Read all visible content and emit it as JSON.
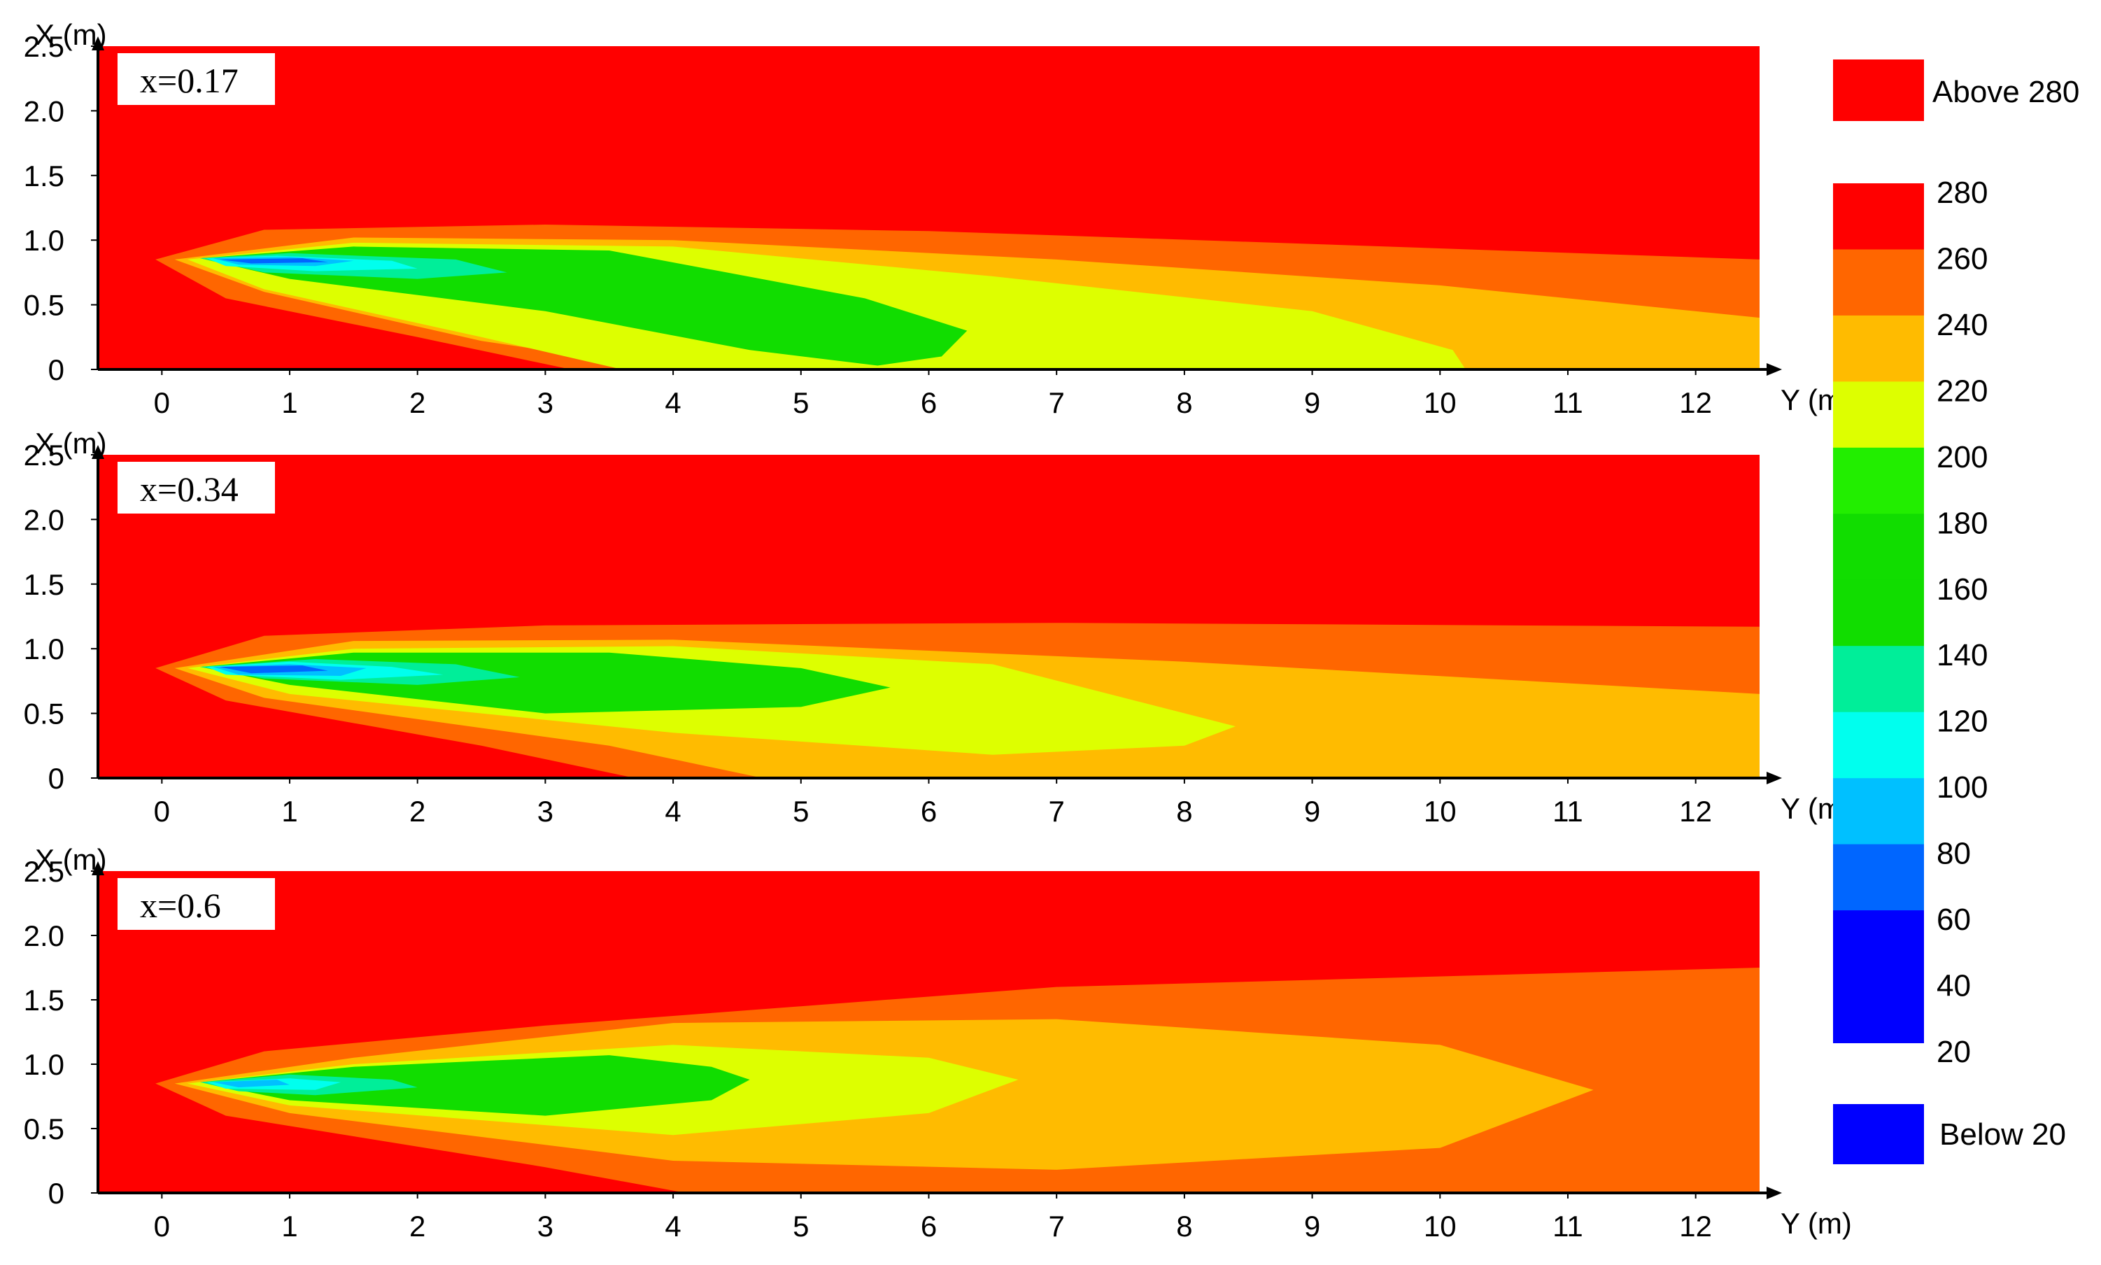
{
  "chart_data": [
    {
      "type": "heatmap",
      "annotation": "x=0.17",
      "xlabel": "Y (m)",
      "ylabel": "X (m)",
      "xlim": [
        -0.5,
        12.5
      ],
      "ylim": [
        0,
        2.5
      ],
      "xticks": [
        "0",
        "1",
        "2",
        "3",
        "4",
        "5",
        "6",
        "7",
        "8",
        "9",
        "10",
        "11",
        "12"
      ],
      "yticks": [
        "0",
        "0.5",
        "1.0",
        "1.5",
        "2.0",
        "2.5"
      ],
      "regions": [
        {
          "level": 280,
          "color": "#ff6600",
          "poly": [
            [
              -0.05,
              0.85
            ],
            [
              0.8,
              1.08
            ],
            [
              3.0,
              1.12
            ],
            [
              6.0,
              1.07
            ],
            [
              9.0,
              0.97
            ],
            [
              12.5,
              0.85
            ],
            [
              12.5,
              0
            ],
            [
              3.2,
              0
            ],
            [
              2.0,
              0.25
            ],
            [
              0.5,
              0.55
            ]
          ]
        },
        {
          "level": 260,
          "color": "#ffbb00",
          "poly": [
            [
              0.1,
              0.85
            ],
            [
              1.5,
              1.02
            ],
            [
              4.0,
              1.0
            ],
            [
              7.0,
              0.85
            ],
            [
              10.0,
              0.65
            ],
            [
              12.5,
              0.4
            ],
            [
              12.5,
              0
            ],
            [
              4.0,
              0
            ],
            [
              2.5,
              0.22
            ],
            [
              0.8,
              0.6
            ]
          ]
        },
        {
          "level": 240,
          "color": "#ddff00",
          "poly": [
            [
              0.2,
              0.85
            ],
            [
              1.5,
              0.98
            ],
            [
              4.0,
              0.95
            ],
            [
              6.5,
              0.72
            ],
            [
              9.0,
              0.45
            ],
            [
              10.1,
              0.15
            ],
            [
              10.2,
              0
            ],
            [
              3.6,
              0
            ],
            [
              2.5,
              0.25
            ],
            [
              0.8,
              0.62
            ]
          ]
        },
        {
          "level": 220,
          "color": "#11dd00",
          "poly": [
            [
              0.3,
              0.86
            ],
            [
              1.5,
              0.95
            ],
            [
              3.5,
              0.92
            ],
            [
              5.5,
              0.55
            ],
            [
              6.3,
              0.3
            ],
            [
              6.1,
              0.1
            ],
            [
              5.6,
              0.03
            ],
            [
              4.6,
              0.15
            ],
            [
              3.0,
              0.45
            ],
            [
              1.0,
              0.7
            ]
          ]
        },
        {
          "level": 140,
          "color": "#00ee99",
          "poly": [
            [
              0.3,
              0.86
            ],
            [
              1.0,
              0.9
            ],
            [
              2.3,
              0.85
            ],
            [
              2.7,
              0.75
            ],
            [
              2.0,
              0.7
            ],
            [
              0.8,
              0.75
            ]
          ]
        },
        {
          "level": 100,
          "color": "#00ffee",
          "poly": [
            [
              0.35,
              0.86
            ],
            [
              0.9,
              0.88
            ],
            [
              1.8,
              0.84
            ],
            [
              2.0,
              0.78
            ],
            [
              1.2,
              0.76
            ],
            [
              0.5,
              0.8
            ]
          ]
        },
        {
          "level": 80,
          "color": "#00c0ff",
          "poly": [
            [
              0.4,
              0.86
            ],
            [
              1.0,
              0.87
            ],
            [
              1.5,
              0.84
            ],
            [
              1.2,
              0.8
            ],
            [
              0.6,
              0.81
            ]
          ]
        },
        {
          "level": 60,
          "color": "#0066ff",
          "poly": [
            [
              0.45,
              0.85
            ],
            [
              1.1,
              0.86
            ],
            [
              1.3,
              0.83
            ],
            [
              0.7,
              0.82
            ]
          ]
        }
      ]
    },
    {
      "type": "heatmap",
      "annotation": "x=0.34",
      "xlabel": "Y (m)",
      "ylabel": "X (m)",
      "xlim": [
        -0.5,
        12.5
      ],
      "ylim": [
        0,
        2.5
      ],
      "xticks": [
        "0",
        "1",
        "2",
        "3",
        "4",
        "5",
        "6",
        "7",
        "8",
        "9",
        "10",
        "11",
        "12"
      ],
      "yticks": [
        "0",
        "0.5",
        "1.0",
        "1.5",
        "2.0",
        "2.5"
      ],
      "regions": [
        {
          "level": 280,
          "color": "#ff6600",
          "poly": [
            [
              -0.05,
              0.85
            ],
            [
              0.8,
              1.1
            ],
            [
              3.0,
              1.18
            ],
            [
              7.0,
              1.2
            ],
            [
              12.5,
              1.17
            ],
            [
              12.5,
              0
            ],
            [
              3.7,
              0
            ],
            [
              2.5,
              0.25
            ],
            [
              0.5,
              0.6
            ]
          ]
        },
        {
          "level": 260,
          "color": "#ffbb00",
          "poly": [
            [
              0.1,
              0.85
            ],
            [
              1.5,
              1.06
            ],
            [
              4.0,
              1.07
            ],
            [
              8.0,
              0.9
            ],
            [
              12.5,
              0.65
            ],
            [
              12.5,
              0
            ],
            [
              4.7,
              0
            ],
            [
              3.5,
              0.25
            ],
            [
              0.8,
              0.62
            ]
          ]
        },
        {
          "level": 240,
          "color": "#ddff00",
          "poly": [
            [
              0.2,
              0.85
            ],
            [
              1.5,
              1.0
            ],
            [
              4.0,
              1.02
            ],
            [
              6.5,
              0.88
            ],
            [
              8.4,
              0.4
            ],
            [
              8.0,
              0.25
            ],
            [
              6.5,
              0.18
            ],
            [
              4.0,
              0.35
            ],
            [
              1.0,
              0.65
            ]
          ]
        },
        {
          "level": 220,
          "color": "#11dd00",
          "poly": [
            [
              0.3,
              0.86
            ],
            [
              1.5,
              0.97
            ],
            [
              3.5,
              0.97
            ],
            [
              5.0,
              0.85
            ],
            [
              5.7,
              0.7
            ],
            [
              5.0,
              0.55
            ],
            [
              3.0,
              0.5
            ],
            [
              1.0,
              0.72
            ]
          ]
        },
        {
          "level": 140,
          "color": "#00ee99",
          "poly": [
            [
              0.3,
              0.86
            ],
            [
              1.2,
              0.92
            ],
            [
              2.3,
              0.88
            ],
            [
              2.8,
              0.78
            ],
            [
              2.0,
              0.72
            ],
            [
              0.8,
              0.77
            ]
          ]
        },
        {
          "level": 100,
          "color": "#00ffee",
          "poly": [
            [
              0.35,
              0.86
            ],
            [
              1.0,
              0.9
            ],
            [
              1.8,
              0.86
            ],
            [
              2.2,
              0.8
            ],
            [
              1.4,
              0.76
            ],
            [
              0.5,
              0.8
            ]
          ]
        },
        {
          "level": 80,
          "color": "#00c0ff",
          "poly": [
            [
              0.4,
              0.86
            ],
            [
              1.0,
              0.88
            ],
            [
              1.6,
              0.85
            ],
            [
              1.4,
              0.79
            ],
            [
              0.6,
              0.8
            ]
          ]
        },
        {
          "level": 60,
          "color": "#0066ff",
          "poly": [
            [
              0.45,
              0.86
            ],
            [
              1.1,
              0.87
            ],
            [
              1.3,
              0.83
            ],
            [
              0.7,
              0.81
            ]
          ]
        }
      ]
    },
    {
      "type": "heatmap",
      "annotation": "x=0.6",
      "xlabel": "Y (m)",
      "ylabel": "X (m)",
      "xlim": [
        -0.5,
        12.5
      ],
      "ylim": [
        0,
        2.5
      ],
      "xticks": [
        "0",
        "1",
        "2",
        "3",
        "4",
        "5",
        "6",
        "7",
        "8",
        "9",
        "10",
        "11",
        "12"
      ],
      "yticks": [
        "0",
        "0.5",
        "1.0",
        "1.5",
        "2.0",
        "2.5"
      ],
      "regions": [
        {
          "level": 280,
          "color": "#ff6600",
          "poly": [
            [
              -0.05,
              0.85
            ],
            [
              0.8,
              1.1
            ],
            [
              3.0,
              1.3
            ],
            [
              7.0,
              1.6
            ],
            [
              12.5,
              1.75
            ],
            [
              12.5,
              0
            ],
            [
              4.1,
              0
            ],
            [
              3.0,
              0.2
            ],
            [
              0.5,
              0.6
            ]
          ]
        },
        {
          "level": 260,
          "color": "#ffbb00",
          "poly": [
            [
              0.1,
              0.85
            ],
            [
              1.5,
              1.05
            ],
            [
              4.0,
              1.32
            ],
            [
              7.0,
              1.35
            ],
            [
              10.0,
              1.15
            ],
            [
              11.2,
              0.8
            ],
            [
              10.0,
              0.35
            ],
            [
              7.0,
              0.18
            ],
            [
              4.0,
              0.25
            ],
            [
              1.0,
              0.62
            ]
          ]
        },
        {
          "level": 240,
          "color": "#ddff00",
          "poly": [
            [
              0.2,
              0.85
            ],
            [
              1.5,
              1.0
            ],
            [
              4.0,
              1.15
            ],
            [
              6.0,
              1.05
            ],
            [
              6.7,
              0.88
            ],
            [
              6.0,
              0.62
            ],
            [
              4.0,
              0.45
            ],
            [
              1.0,
              0.68
            ]
          ]
        },
        {
          "level": 220,
          "color": "#11dd00",
          "poly": [
            [
              0.3,
              0.86
            ],
            [
              1.5,
              0.98
            ],
            [
              3.5,
              1.07
            ],
            [
              4.3,
              0.98
            ],
            [
              4.6,
              0.88
            ],
            [
              4.3,
              0.72
            ],
            [
              3.0,
              0.6
            ],
            [
              1.0,
              0.72
            ]
          ]
        },
        {
          "level": 140,
          "color": "#00ee99",
          "poly": [
            [
              0.3,
              0.86
            ],
            [
              1.0,
              0.92
            ],
            [
              1.8,
              0.88
            ],
            [
              2.0,
              0.82
            ],
            [
              1.2,
              0.76
            ],
            [
              0.6,
              0.79
            ]
          ]
        },
        {
          "level": 100,
          "color": "#00ffee",
          "poly": [
            [
              0.35,
              0.86
            ],
            [
              1.0,
              0.89
            ],
            [
              1.4,
              0.86
            ],
            [
              1.2,
              0.8
            ],
            [
              0.5,
              0.81
            ]
          ]
        },
        {
          "level": 80,
          "color": "#00c0ff",
          "poly": [
            [
              0.4,
              0.86
            ],
            [
              0.9,
              0.88
            ],
            [
              1.0,
              0.84
            ],
            [
              0.6,
              0.82
            ]
          ]
        }
      ]
    }
  ],
  "legend": {
    "above": {
      "label": "Above 280",
      "color": "#ff0000"
    },
    "below": {
      "label": "Below 20",
      "color": "#0000ff"
    },
    "bands": [
      {
        "label": "280",
        "color": "#ff0000"
      },
      {
        "label": "260",
        "color": "#ff6600"
      },
      {
        "label": "240",
        "color": "#ffbb00"
      },
      {
        "label": "220",
        "color": "#ddff00"
      },
      {
        "label": "200",
        "color": "#22ee00"
      },
      {
        "label": "180",
        "color": "#11dd00"
      },
      {
        "label": "160",
        "color": "#11dd00"
      },
      {
        "label": "140",
        "color": "#00ee99"
      },
      {
        "label": "120",
        "color": "#00ffee"
      },
      {
        "label": "100",
        "color": "#00c0ff"
      },
      {
        "label": "80",
        "color": "#0066ff"
      },
      {
        "label": "60",
        "color": "#0000ff"
      },
      {
        "label": "40",
        "color": "#0000ff"
      },
      {
        "label": "20",
        "color": "#0000ff"
      }
    ]
  },
  "colors": {
    "background_field": "#ff0000"
  }
}
